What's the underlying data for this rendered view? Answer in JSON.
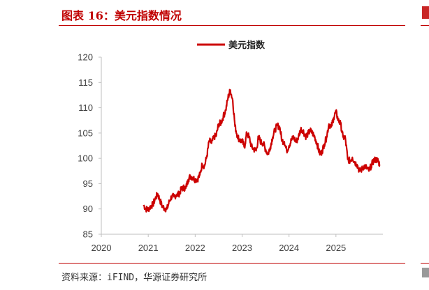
{
  "header": {
    "title": "图表 16：美元指数情况"
  },
  "footer": {
    "source": "资料来源：iFIND，华源证券研究所"
  },
  "colors": {
    "accent": "#c00000",
    "line": "#cc0000",
    "axis": "#bfbfbf"
  },
  "chart_data": {
    "type": "line",
    "title": "美元指数情况",
    "xlabel": "",
    "ylabel": "",
    "xlim": [
      2020,
      2026.0
    ],
    "ylim": [
      85,
      120
    ],
    "x_ticks": [
      "2020",
      "2021",
      "2022",
      "2023",
      "2024",
      "2025"
    ],
    "y_ticks": [
      "85",
      "90",
      "95",
      "100",
      "105",
      "110",
      "115",
      "120"
    ],
    "legend": {
      "position": "top-center",
      "entries": [
        "美元指数"
      ]
    },
    "series": [
      {
        "name": "美元指数",
        "points": [
          [
            2020.9,
            90.8
          ],
          [
            2020.95,
            90.0
          ],
          [
            2021.0,
            89.9
          ],
          [
            2021.05,
            90.5
          ],
          [
            2021.1,
            90.9
          ],
          [
            2021.15,
            92.0
          ],
          [
            2021.2,
            93.0
          ],
          [
            2021.25,
            91.7
          ],
          [
            2021.3,
            90.5
          ],
          [
            2021.35,
            90.1
          ],
          [
            2021.4,
            90.0
          ],
          [
            2021.45,
            91.5
          ],
          [
            2021.5,
            92.5
          ],
          [
            2021.55,
            92.4
          ],
          [
            2021.6,
            92.8
          ],
          [
            2021.65,
            92.9
          ],
          [
            2021.7,
            93.8
          ],
          [
            2021.75,
            94.2
          ],
          [
            2021.8,
            94.1
          ],
          [
            2021.85,
            95.8
          ],
          [
            2021.9,
            96.5
          ],
          [
            2021.95,
            96.2
          ],
          [
            2022.0,
            95.8
          ],
          [
            2022.05,
            95.9
          ],
          [
            2022.1,
            96.7
          ],
          [
            2022.15,
            98.8
          ],
          [
            2022.2,
            98.5
          ],
          [
            2022.25,
            100.5
          ],
          [
            2022.3,
            103.5
          ],
          [
            2022.35,
            103.0
          ],
          [
            2022.4,
            104.2
          ],
          [
            2022.45,
            104.5
          ],
          [
            2022.5,
            106.8
          ],
          [
            2022.55,
            107.0
          ],
          [
            2022.6,
            108.3
          ],
          [
            2022.65,
            109.5
          ],
          [
            2022.7,
            112.0
          ],
          [
            2022.75,
            113.5
          ],
          [
            2022.8,
            111.5
          ],
          [
            2022.85,
            106.3
          ],
          [
            2022.9,
            104.5
          ],
          [
            2022.95,
            103.5
          ],
          [
            2023.0,
            103.5
          ],
          [
            2023.05,
            102.2
          ],
          [
            2023.1,
            105.0
          ],
          [
            2023.15,
            104.2
          ],
          [
            2023.2,
            102.3
          ],
          [
            2023.25,
            101.8
          ],
          [
            2023.3,
            101.5
          ],
          [
            2023.35,
            104.2
          ],
          [
            2023.4,
            103.2
          ],
          [
            2023.45,
            103.0
          ],
          [
            2023.5,
            101.8
          ],
          [
            2023.55,
            100.8
          ],
          [
            2023.6,
            102.2
          ],
          [
            2023.65,
            104.2
          ],
          [
            2023.7,
            105.6
          ],
          [
            2023.75,
            106.5
          ],
          [
            2023.8,
            106.2
          ],
          [
            2023.85,
            103.5
          ],
          [
            2023.9,
            103.3
          ],
          [
            2023.95,
            101.5
          ],
          [
            2024.0,
            102.5
          ],
          [
            2024.05,
            103.6
          ],
          [
            2024.1,
            104.2
          ],
          [
            2024.15,
            103.2
          ],
          [
            2024.2,
            104.2
          ],
          [
            2024.25,
            105.8
          ],
          [
            2024.3,
            105.5
          ],
          [
            2024.35,
            104.3
          ],
          [
            2024.4,
            104.8
          ],
          [
            2024.45,
            105.5
          ],
          [
            2024.5,
            105.0
          ],
          [
            2024.55,
            104.2
          ],
          [
            2024.6,
            102.8
          ],
          [
            2024.65,
            101.0
          ],
          [
            2024.7,
            101.2
          ],
          [
            2024.75,
            102.8
          ],
          [
            2024.8,
            104.2
          ],
          [
            2024.85,
            106.8
          ],
          [
            2024.9,
            106.2
          ],
          [
            2024.95,
            108.0
          ],
          [
            2025.0,
            109.2
          ],
          [
            2025.05,
            107.5
          ],
          [
            2025.1,
            106.8
          ],
          [
            2025.15,
            104.2
          ],
          [
            2025.2,
            104.0
          ],
          [
            2025.25,
            99.8
          ],
          [
            2025.3,
            99.5
          ],
          [
            2025.35,
            100.2
          ],
          [
            2025.4,
            99.2
          ],
          [
            2025.45,
            98.8
          ],
          [
            2025.5,
            97.5
          ],
          [
            2025.55,
            97.8
          ],
          [
            2025.6,
            98.5
          ],
          [
            2025.65,
            98.2
          ],
          [
            2025.7,
            97.5
          ],
          [
            2025.75,
            98.5
          ],
          [
            2025.8,
            99.5
          ],
          [
            2025.85,
            99.8
          ],
          [
            2025.9,
            99.5
          ],
          [
            2025.93,
            98.8
          ]
        ]
      }
    ]
  }
}
